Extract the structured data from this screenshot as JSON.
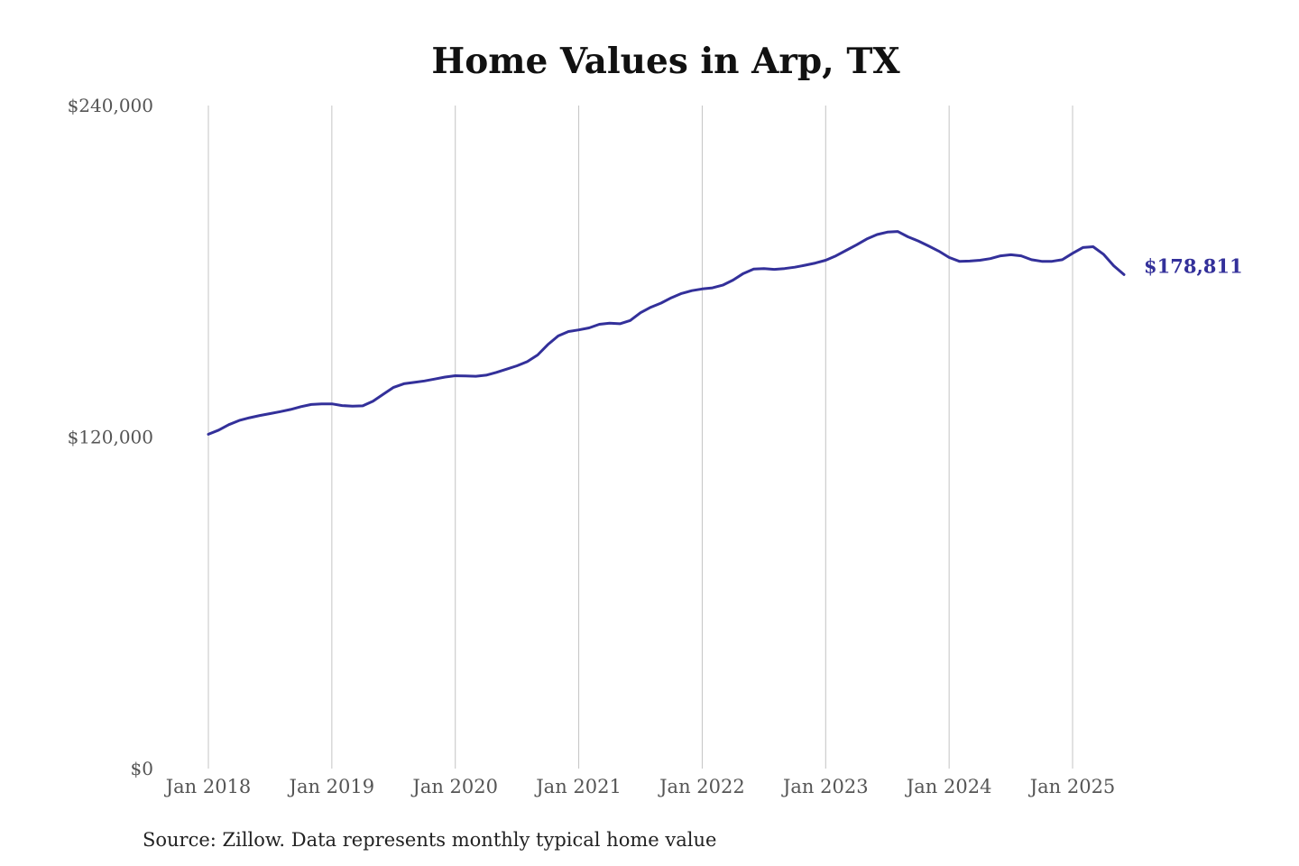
{
  "chart_data": {
    "type": "line",
    "title": "Home Values in Arp, TX",
    "xlabel": "",
    "ylabel": "",
    "ylim": [
      0,
      240000
    ],
    "yticks": [
      {
        "value": 0,
        "label": "$0"
      },
      {
        "value": 120000,
        "label": "$120,000"
      },
      {
        "value": 240000,
        "label": "$240,000"
      }
    ],
    "xticks": [
      {
        "value": "2018-01",
        "label": "Jan 2018"
      },
      {
        "value": "2019-01",
        "label": "Jan 2019"
      },
      {
        "value": "2020-01",
        "label": "Jan 2020"
      },
      {
        "value": "2021-01",
        "label": "Jan 2021"
      },
      {
        "value": "2022-01",
        "label": "Jan 2022"
      },
      {
        "value": "2023-01",
        "label": "Jan 2023"
      },
      {
        "value": "2024-01",
        "label": "Jan 2024"
      },
      {
        "value": "2025-01",
        "label": "Jan 2025"
      }
    ],
    "grid": "vertical",
    "series": [
      {
        "color": "#33309a",
        "end_label": "$178,811",
        "x": [
          "2018-01",
          "2018-02",
          "2018-03",
          "2018-04",
          "2018-05",
          "2018-06",
          "2018-07",
          "2018-08",
          "2018-09",
          "2018-10",
          "2018-11",
          "2018-12",
          "2019-01",
          "2019-02",
          "2019-03",
          "2019-04",
          "2019-05",
          "2019-06",
          "2019-07",
          "2019-08",
          "2019-09",
          "2019-10",
          "2019-11",
          "2019-12",
          "2020-01",
          "2020-02",
          "2020-03",
          "2020-04",
          "2020-05",
          "2020-06",
          "2020-07",
          "2020-08",
          "2020-09",
          "2020-10",
          "2020-11",
          "2020-12",
          "2021-01",
          "2021-02",
          "2021-03",
          "2021-04",
          "2021-05",
          "2021-06",
          "2021-07",
          "2021-08",
          "2021-09",
          "2021-10",
          "2021-11",
          "2021-12",
          "2022-01",
          "2022-02",
          "2022-03",
          "2022-04",
          "2022-05",
          "2022-06",
          "2022-07",
          "2022-08",
          "2022-09",
          "2022-10",
          "2022-11",
          "2022-12",
          "2023-01",
          "2023-02",
          "2023-03",
          "2023-04",
          "2023-05",
          "2023-06",
          "2023-07",
          "2023-08",
          "2023-09",
          "2023-10",
          "2023-11",
          "2023-12",
          "2024-01",
          "2024-02",
          "2024-03",
          "2024-04",
          "2024-05",
          "2024-06",
          "2024-07",
          "2024-08",
          "2024-09",
          "2024-10",
          "2024-11",
          "2024-12",
          "2025-01",
          "2025-02",
          "2025-03",
          "2025-04",
          "2025-05",
          "2025-06"
        ],
        "values": [
          121000,
          122500,
          124500,
          126000,
          127000,
          127800,
          128500,
          129200,
          130000,
          131000,
          131800,
          132000,
          132000,
          131400,
          131200,
          131300,
          133000,
          135500,
          138000,
          139300,
          139800,
          140300,
          141000,
          141700,
          142200,
          142100,
          142000,
          142400,
          143400,
          144600,
          145800,
          147300,
          149700,
          153500,
          156600,
          158200,
          158800,
          159500,
          160800,
          161200,
          161000,
          162200,
          165000,
          167000,
          168500,
          170400,
          172000,
          173000,
          173600,
          174000,
          175000,
          176800,
          179200,
          180800,
          181000,
          180700,
          181000,
          181500,
          182200,
          183000,
          184000,
          185600,
          187600,
          189600,
          191700,
          193300,
          194200,
          194400,
          192500,
          191000,
          189200,
          187300,
          185000,
          183600,
          183700,
          184000,
          184600,
          185600,
          186000,
          185600,
          184200,
          183600,
          183600,
          184200,
          186500,
          188600,
          188900,
          186200,
          182000,
          178811
        ]
      }
    ]
  },
  "source_note": "Source: Zillow. Data represents monthly typical home value"
}
